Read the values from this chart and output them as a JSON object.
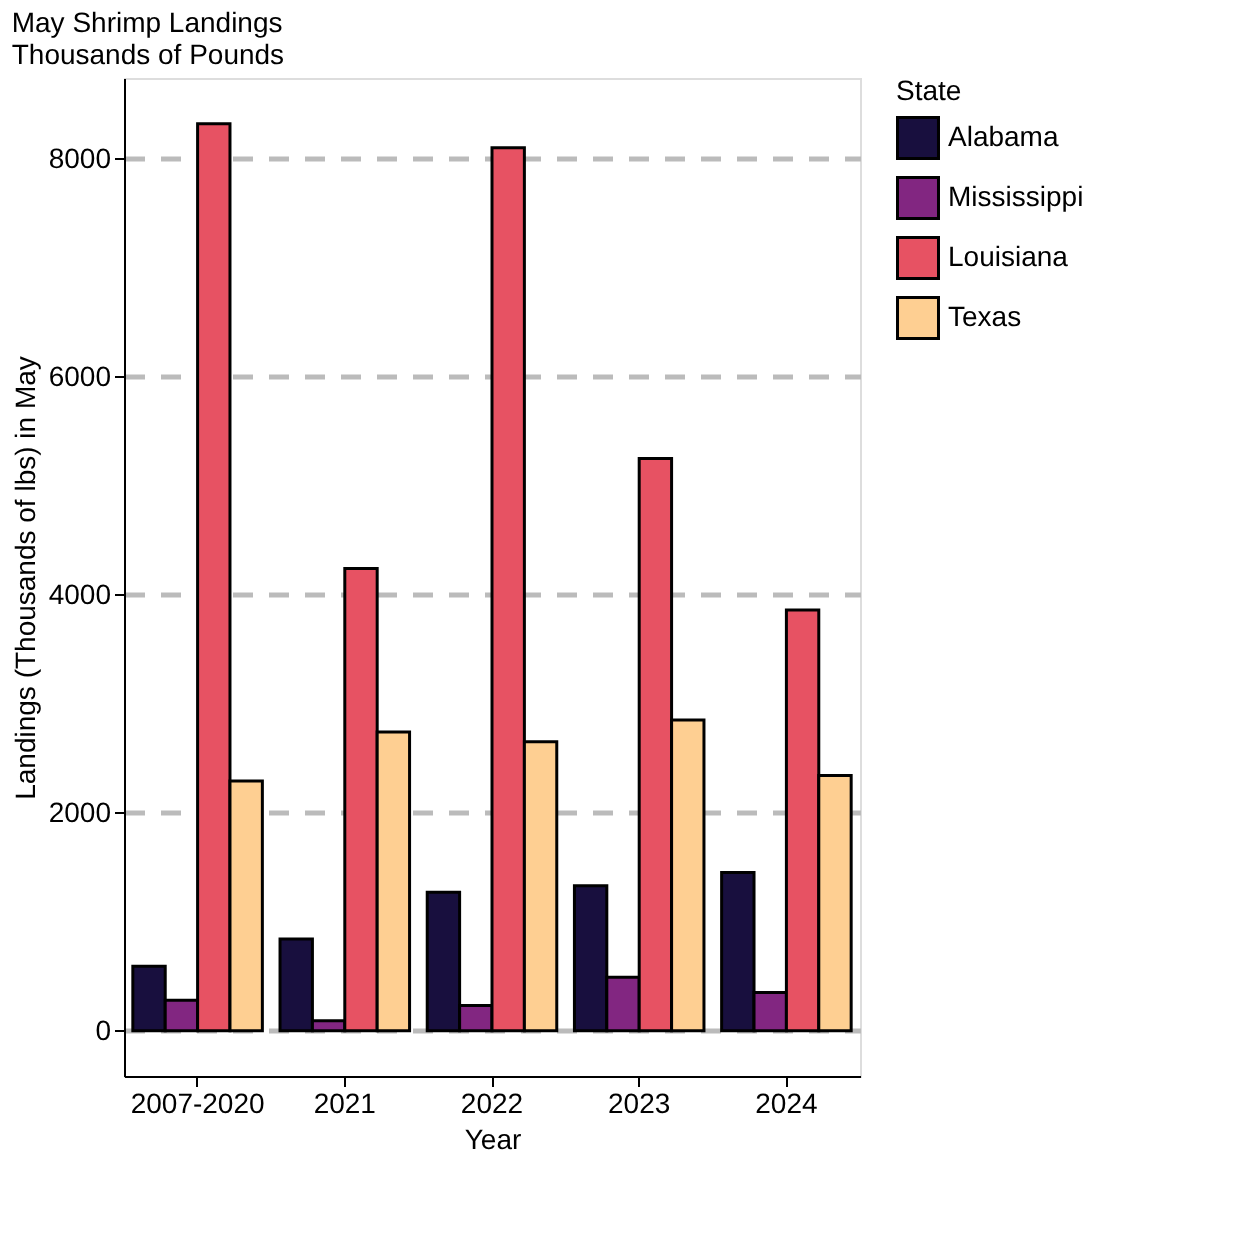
{
  "chart_data": {
    "type": "bar",
    "title": "May Shrimp Landings",
    "subtitle": "Thousands of Pounds",
    "xlabel": "Year",
    "ylabel": "Landings (Thousands of lbs) in May",
    "legend_title": "State",
    "categories": [
      "2007-2020",
      "2021",
      "2022",
      "2023",
      "2024"
    ],
    "series": [
      {
        "name": "Alabama",
        "color": "#180f3e",
        "values": [
          590,
          840,
          1270,
          1330,
          1450
        ]
      },
      {
        "name": "Mississippi",
        "color": "#822681",
        "values": [
          280,
          90,
          230,
          490,
          350
        ]
      },
      {
        "name": "Louisiana",
        "color": "#e75263",
        "values": [
          8320,
          4240,
          8100,
          5250,
          3860
        ]
      },
      {
        "name": "Texas",
        "color": "#fecf92",
        "values": [
          2290,
          2740,
          2650,
          2850,
          2340
        ]
      }
    ],
    "ylim": [
      -416,
      8740
    ],
    "yticks": [
      0,
      2000,
      4000,
      6000,
      8000
    ],
    "grid": "y",
    "legend": "right"
  }
}
